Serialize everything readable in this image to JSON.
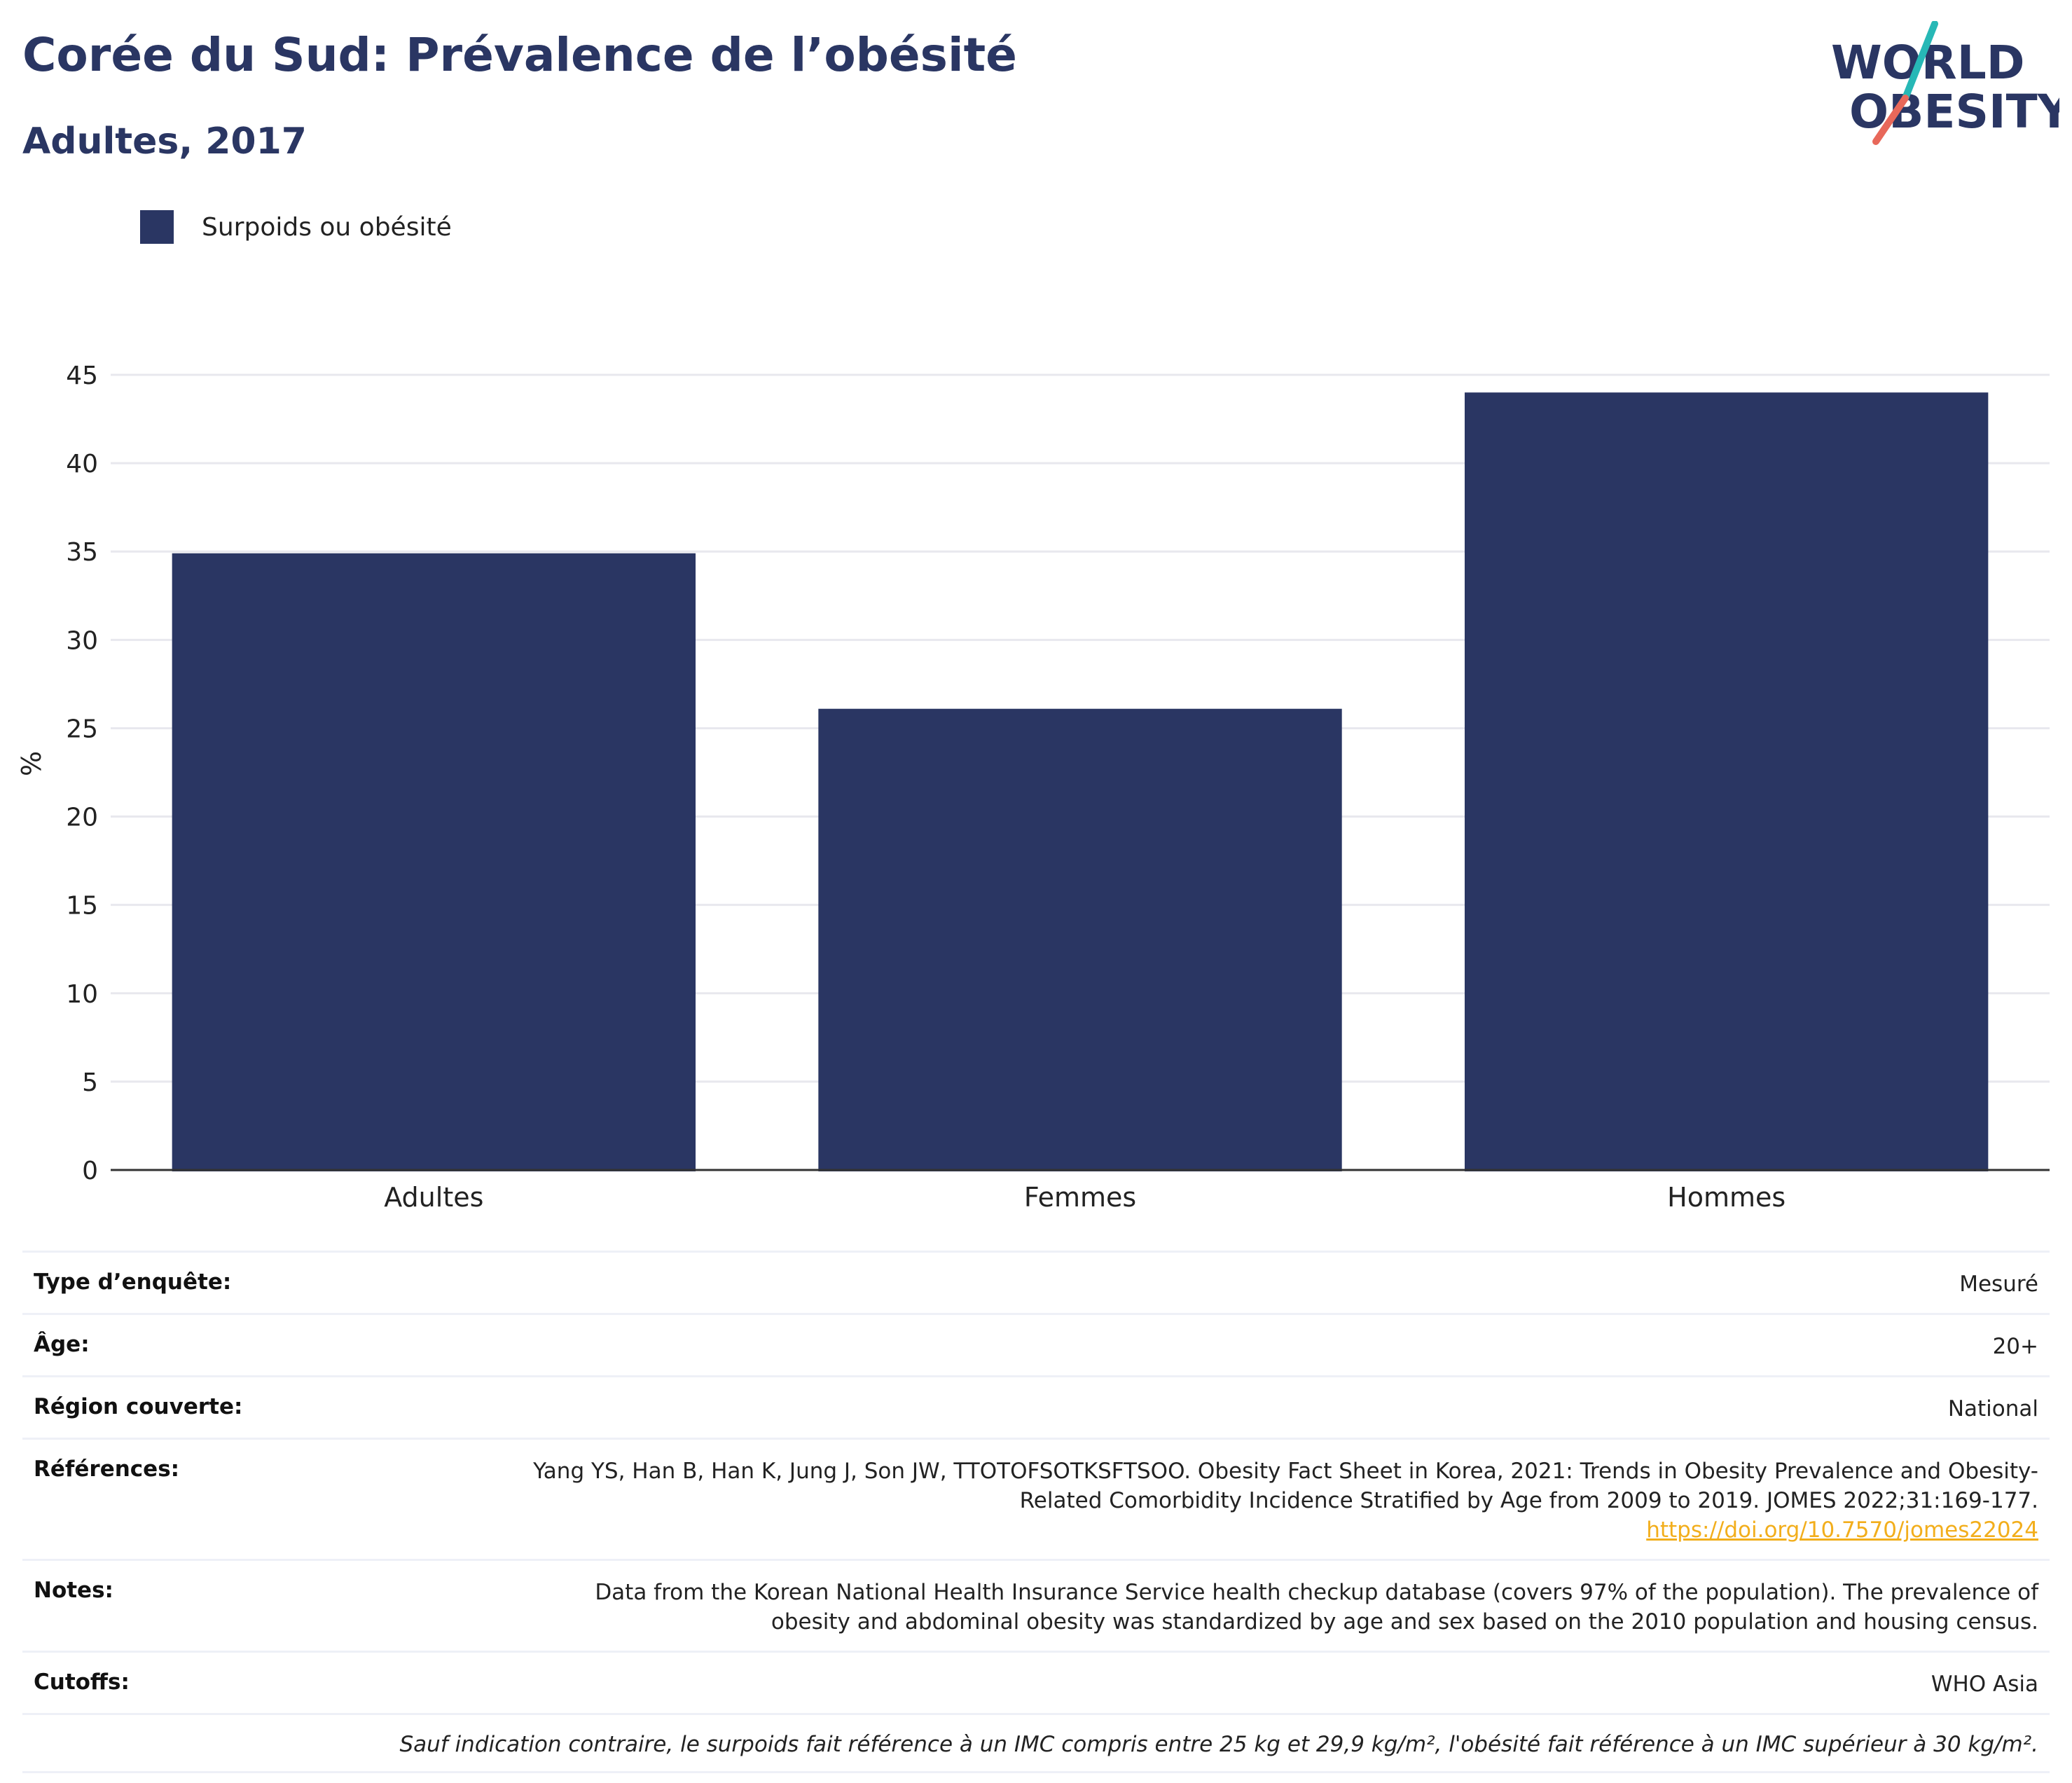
{
  "header": {
    "title": "Corée du Sud: Prévalence de l’obésité",
    "subtitle": "Adultes, 2017",
    "logo_line1": "WORLD",
    "logo_line2": "OBESITY"
  },
  "colors": {
    "bar": "#2a3663",
    "title": "#2a3663",
    "gridline": "#e8e8ee",
    "link": "#f2ae1c",
    "logo_slash_top": "#27b8b6",
    "logo_slash_bottom": "#e8685a"
  },
  "legend": [
    {
      "label": "Surpoids ou obésité",
      "color": "#2a3663"
    }
  ],
  "chart_data": {
    "type": "bar",
    "categories": [
      "Adultes",
      "Femmes",
      "Hommes"
    ],
    "series": [
      {
        "name": "Surpoids ou obésité",
        "values": [
          34.9,
          26.1,
          44.0
        ]
      }
    ],
    "ylabel": "%",
    "xlabel": "",
    "ylim": [
      0,
      45
    ],
    "yticks": [
      0,
      5,
      10,
      15,
      20,
      25,
      30,
      35,
      40,
      45
    ],
    "grid": true,
    "legend_position": "top-left"
  },
  "info": {
    "rows": [
      {
        "key": "Type d’enquête:",
        "value": "Mesuré"
      },
      {
        "key": "Âge:",
        "value": "20+"
      },
      {
        "key": "Région couverte:",
        "value": "National"
      },
      {
        "key": "Références:",
        "value": "Yang YS, Han B, Han K, Jung J, Son JW, TTOTOFSOTKSFTSOO. Obesity Fact Sheet in Korea, 2021: Trends in Obesity Prevalence and Obesity-Related Comorbidity Incidence Stratified by Age from 2009 to 2019. JOMES 2022;31:169-177.",
        "link": "https://doi.org/10.7570/jomes22024"
      },
      {
        "key": "Notes:",
        "value": "Data from the Korean National Health Insurance Service health checkup database (covers 97% of the population). The prevalence of obesity and abdominal obesity was standardized by age and sex based on the 2010 population and housing census."
      },
      {
        "key": "Cutoffs:",
        "value": "WHO Asia"
      }
    ],
    "footnote": "Sauf indication contraire, le surpoids fait référence à un IMC compris entre 25 kg et 29,9 kg/m², l'obésité fait référence à un IMC supérieur à 30 kg/m²."
  }
}
